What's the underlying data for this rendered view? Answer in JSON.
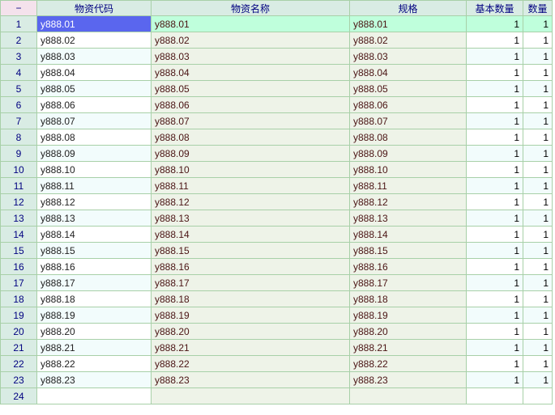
{
  "grid": {
    "corner_label": "−",
    "columns": [
      "物资代码",
      "物资名称",
      "规格",
      "基本数量",
      "数量"
    ],
    "selected_row": 1,
    "rows": [
      [
        "1",
        "y888.01",
        "y888.01",
        "y888.01",
        "1",
        "1"
      ],
      [
        "2",
        "y888.02",
        "y888.02",
        "y888.02",
        "1",
        "1"
      ],
      [
        "3",
        "y888.03",
        "y888.03",
        "y888.03",
        "1",
        "1"
      ],
      [
        "4",
        "y888.04",
        "y888.04",
        "y888.04",
        "1",
        "1"
      ],
      [
        "5",
        "y888.05",
        "y888.05",
        "y888.05",
        "1",
        "1"
      ],
      [
        "6",
        "y888.06",
        "y888.06",
        "y888.06",
        "1",
        "1"
      ],
      [
        "7",
        "y888.07",
        "y888.07",
        "y888.07",
        "1",
        "1"
      ],
      [
        "8",
        "y888.08",
        "y888.08",
        "y888.08",
        "1",
        "1"
      ],
      [
        "9",
        "y888.09",
        "y888.09",
        "y888.09",
        "1",
        "1"
      ],
      [
        "10",
        "y888.10",
        "y888.10",
        "y888.10",
        "1",
        "1"
      ],
      [
        "11",
        "y888.11",
        "y888.11",
        "y888.11",
        "1",
        "1"
      ],
      [
        "12",
        "y888.12",
        "y888.12",
        "y888.12",
        "1",
        "1"
      ],
      [
        "13",
        "y888.13",
        "y888.13",
        "y888.13",
        "1",
        "1"
      ],
      [
        "14",
        "y888.14",
        "y888.14",
        "y888.14",
        "1",
        "1"
      ],
      [
        "15",
        "y888.15",
        "y888.15",
        "y888.15",
        "1",
        "1"
      ],
      [
        "16",
        "y888.16",
        "y888.16",
        "y888.16",
        "1",
        "1"
      ],
      [
        "17",
        "y888.17",
        "y888.17",
        "y888.17",
        "1",
        "1"
      ],
      [
        "18",
        "y888.18",
        "y888.18",
        "y888.18",
        "1",
        "1"
      ],
      [
        "19",
        "y888.19",
        "y888.19",
        "y888.19",
        "1",
        "1"
      ],
      [
        "20",
        "y888.20",
        "y888.20",
        "y888.20",
        "1",
        "1"
      ],
      [
        "21",
        "y888.21",
        "y888.21",
        "y888.21",
        "1",
        "1"
      ],
      [
        "22",
        "y888.22",
        "y888.22",
        "y888.22",
        "1",
        "1"
      ],
      [
        "23",
        "y888.23",
        "y888.23",
        "y888.23",
        "1",
        "1"
      ],
      [
        "24",
        "",
        "",
        "",
        "",
        ""
      ]
    ]
  }
}
